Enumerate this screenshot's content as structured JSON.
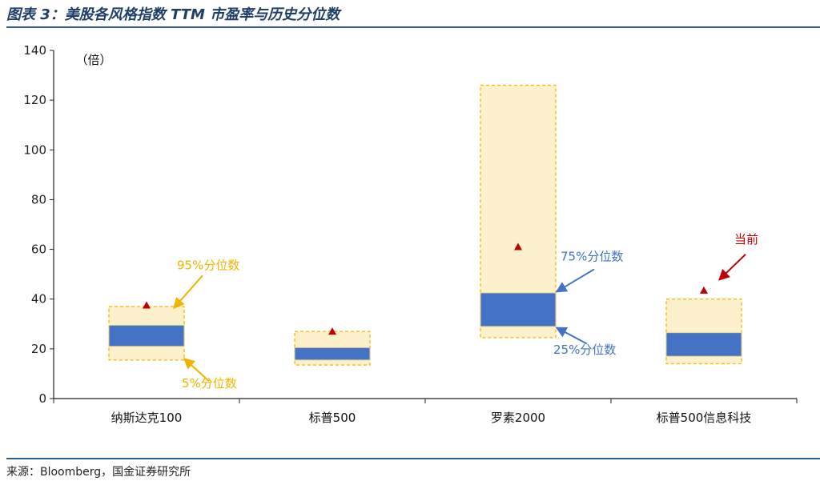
{
  "header": {
    "title": "图表 3：美股各风格指数 TTM 市盈率与历史分位数"
  },
  "footer": {
    "source": "来源：Bloomberg，国金证券研究所"
  },
  "colors": {
    "band_outer_fill": "#fdf0cc",
    "band_outer_border": "#f3b800",
    "band_inner_fill": "#4472c4",
    "current_marker": "#c00000",
    "annotation_yellow": "#f0b400",
    "annotation_blue": "#4472c4",
    "annotation_red": "#c00000",
    "rule": "#2e5f8a"
  },
  "chart_data": {
    "type": "box",
    "title": "美股各风格指数 TTM 市盈率与历史分位数",
    "ylabel": "（倍）",
    "ylim": [
      0,
      140
    ],
    "yticks": [
      0,
      20,
      40,
      60,
      80,
      100,
      120,
      140
    ],
    "grid": false,
    "categories": [
      "纳斯达克100",
      "标普500",
      "罗素2000",
      "标普500信息科技"
    ],
    "series": [
      {
        "name": "5%分位数",
        "values": [
          15.5,
          13.5,
          24.5,
          14.0
        ]
      },
      {
        "name": "25%分位数",
        "values": [
          21.0,
          15.5,
          29.0,
          17.0
        ]
      },
      {
        "name": "75%分位数",
        "values": [
          29.5,
          20.5,
          42.5,
          26.5
        ]
      },
      {
        "name": "95%分位数",
        "values": [
          37.0,
          27.0,
          126.0,
          40.0
        ]
      },
      {
        "name": "当前",
        "values": [
          37.5,
          27.0,
          61.0,
          43.5
        ]
      }
    ],
    "annotations": {
      "p95": "95%分位数",
      "p5": "5%分位数",
      "p75": "75%分位数",
      "p25": "25%分位数",
      "current": "当前"
    }
  }
}
